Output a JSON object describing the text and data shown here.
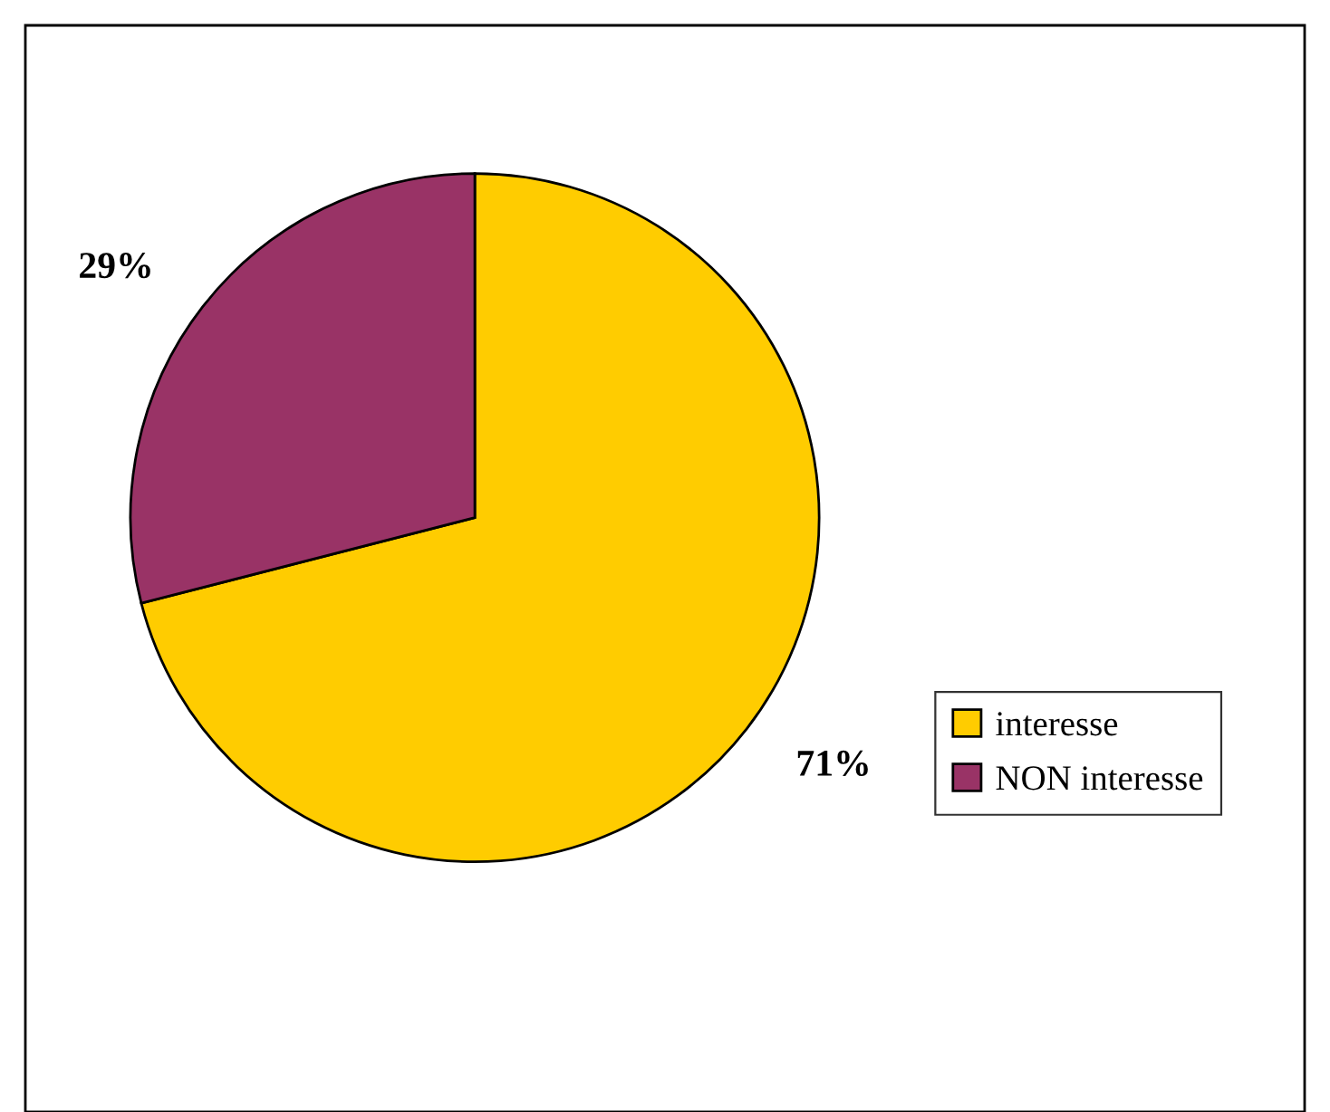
{
  "chart_data": {
    "type": "pie",
    "categories": [
      "interesse",
      "NON interesse"
    ],
    "values": [
      71,
      29
    ],
    "colors": [
      "#ffcc00",
      "#993366"
    ],
    "value_labels": [
      "71%",
      "29%"
    ],
    "legend": "right"
  }
}
